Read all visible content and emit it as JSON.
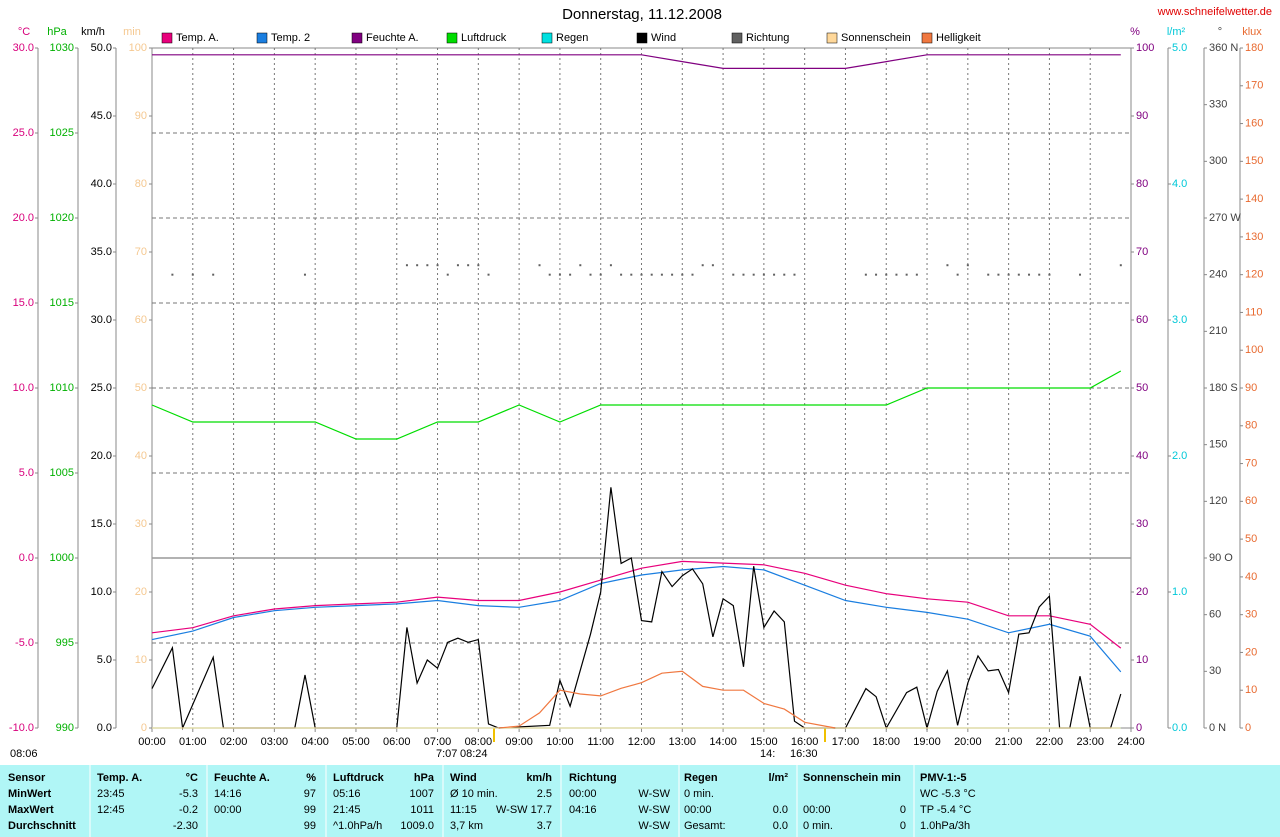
{
  "title": "Donnerstag, 11.12.2008",
  "url": "www.schneifelwetter.de",
  "time_marks": [
    "08:06",
    "7:07",
    "08:24",
    "14:",
    "16:30"
  ],
  "chart_data": {
    "type": "line",
    "xlim": [
      0,
      24
    ],
    "xticks": [
      {
        "value": 0,
        "label": "00:00"
      },
      {
        "value": 1,
        "label": "01:00"
      },
      {
        "value": 2,
        "label": "02:00"
      },
      {
        "value": 3,
        "label": "03:00"
      },
      {
        "value": 4,
        "label": "04:00"
      },
      {
        "value": 5,
        "label": "05:00"
      },
      {
        "value": 6,
        "label": "06:00"
      },
      {
        "value": 7,
        "label": "07:00"
      },
      {
        "value": 8,
        "label": "08:00"
      },
      {
        "value": 9,
        "label": "09:00"
      },
      {
        "value": 10,
        "label": "10:00"
      },
      {
        "value": 11,
        "label": "11:00"
      },
      {
        "value": 12,
        "label": "12:00"
      },
      {
        "value": 13,
        "label": "13:00"
      },
      {
        "value": 14,
        "label": "14:00"
      },
      {
        "value": 15,
        "label": "15:00"
      },
      {
        "value": 16,
        "label": "16:00"
      },
      {
        "value": 17,
        "label": "17:00"
      },
      {
        "value": 18,
        "label": "18:00"
      },
      {
        "value": 19,
        "label": "19:00"
      },
      {
        "value": 20,
        "label": "20:00"
      },
      {
        "value": 21,
        "label": "21:00"
      },
      {
        "value": 22,
        "label": "22:00"
      },
      {
        "value": 23,
        "label": "23:00"
      },
      {
        "value": 24,
        "label": "24:00"
      }
    ],
    "grid": true,
    "axes": [
      {
        "unit": "°C",
        "color": "#d8007c",
        "lim": [
          -10,
          30
        ],
        "ticks": [
          {
            "value": -10,
            "label": "-10.0"
          },
          {
            "value": -5,
            "label": "-5.0"
          },
          {
            "value": 0,
            "label": "0.0"
          },
          {
            "value": 5,
            "label": "5.0"
          },
          {
            "value": 10,
            "label": "10.0"
          },
          {
            "value": 15,
            "label": "15.0"
          },
          {
            "value": 20,
            "label": "20.0"
          },
          {
            "value": 25,
            "label": "25.0"
          },
          {
            "value": 30,
            "label": "30.0"
          }
        ]
      },
      {
        "unit": "hPa",
        "color": "#00b000",
        "lim": [
          990,
          1030
        ],
        "ticks": [
          990,
          995,
          1000,
          1005,
          1010,
          1015,
          1020,
          1025,
          1030
        ]
      },
      {
        "unit": "km/h",
        "color": "#000000",
        "lim": [
          0,
          50
        ],
        "ticks": [
          {
            "value": 0,
            "label": "0.0"
          },
          {
            "value": 5,
            "label": "5.0"
          },
          {
            "value": 10,
            "label": "10.0"
          },
          {
            "value": 15,
            "label": "15.0"
          },
          {
            "value": 20,
            "label": "20.0"
          },
          {
            "value": 25,
            "label": "25.0"
          },
          {
            "value": 30,
            "label": "30.0"
          },
          {
            "value": 35,
            "label": "35.0"
          },
          {
            "value": 40,
            "label": "40.0"
          },
          {
            "value": 45,
            "label": "45.0"
          },
          {
            "value": 50,
            "label": "50.0"
          }
        ]
      },
      {
        "unit": "min",
        "color": "#f5c890",
        "lim": [
          0,
          100
        ],
        "ticks": [
          0,
          10,
          20,
          30,
          40,
          50,
          60,
          70,
          80,
          90,
          100
        ]
      },
      {
        "unit": "%",
        "color": "#800080",
        "lim": [
          0,
          100
        ],
        "ticks": [
          0,
          10,
          20,
          30,
          40,
          50,
          60,
          70,
          80,
          90,
          100
        ]
      },
      {
        "unit": "l/m²",
        "color": "#00c8d8",
        "lim": [
          0,
          5
        ],
        "ticks": [
          {
            "value": 0,
            "label": "0.0"
          },
          {
            "value": 1,
            "label": "1.0"
          },
          {
            "value": 2,
            "label": "2.0"
          },
          {
            "value": 3,
            "label": "3.0"
          },
          {
            "value": 4,
            "label": "4.0"
          },
          {
            "value": 5,
            "label": "5.0"
          }
        ]
      },
      {
        "unit": "°",
        "color": "#404040",
        "lim": [
          0,
          360
        ],
        "ticks": [
          {
            "value": 0,
            "label": "0 N"
          },
          30,
          60,
          {
            "value": 90,
            "label": "90 O"
          },
          120,
          150,
          {
            "value": 180,
            "label": "180 S"
          },
          210,
          240,
          {
            "value": 270,
            "label": "270 W"
          },
          300,
          330,
          {
            "value": 360,
            "label": "360 N"
          }
        ]
      },
      {
        "unit": "klux",
        "color": "#e86a30",
        "lim": [
          0,
          180
        ],
        "ticks": [
          0,
          10,
          20,
          30,
          40,
          50,
          60,
          70,
          80,
          90,
          100,
          110,
          120,
          130,
          140,
          150,
          160,
          170,
          180
        ]
      }
    ],
    "series": [
      {
        "name": "Temp. A.",
        "color": "#e8007c",
        "axis": "°C",
        "kind": "line",
        "x": [
          0,
          1,
          2,
          3,
          4,
          5,
          6,
          7,
          8,
          9,
          10,
          11,
          12,
          13,
          14,
          15,
          16,
          17,
          18,
          19,
          20,
          21,
          22,
          23,
          23.75
        ],
        "values": [
          -4.4,
          -4.1,
          -3.4,
          -3.0,
          -2.8,
          -2.7,
          -2.6,
          -2.3,
          -2.5,
          -2.5,
          -2.0,
          -1.3,
          -0.6,
          -0.2,
          -0.3,
          -0.4,
          -0.9,
          -1.6,
          -2.1,
          -2.4,
          -2.6,
          -3.4,
          -3.4,
          -3.9,
          -5.3
        ]
      },
      {
        "name": "Temp. 2",
        "color": "#1a7ee0",
        "axis": "°C",
        "kind": "line",
        "x": [
          0,
          1,
          2,
          3,
          4,
          5,
          6,
          7,
          8,
          9,
          10,
          11,
          12,
          13,
          14,
          15,
          16,
          17,
          18,
          19,
          20,
          21,
          22,
          23,
          23.75
        ],
        "values": [
          -4.8,
          -4.3,
          -3.5,
          -3.1,
          -2.9,
          -2.8,
          -2.7,
          -2.5,
          -2.8,
          -2.9,
          -2.5,
          -1.5,
          -1.0,
          -0.7,
          -0.5,
          -0.7,
          -1.6,
          -2.5,
          -2.9,
          -3.2,
          -3.6,
          -4.4,
          -3.9,
          -4.6,
          -6.7
        ]
      },
      {
        "name": "Feuchte A.",
        "color": "#800080",
        "axis": "%",
        "kind": "line",
        "x": [
          0,
          1,
          2,
          3,
          4,
          5,
          6,
          7,
          8,
          9,
          10,
          11,
          12,
          13,
          14,
          15,
          16,
          17,
          18,
          19,
          20,
          21,
          22,
          23,
          23.75
        ],
        "values": [
          99,
          99,
          99,
          99,
          99,
          99,
          99,
          99,
          99,
          99,
          99,
          99,
          99,
          98,
          97,
          97,
          97,
          97,
          98,
          99,
          99,
          99,
          99,
          99,
          99
        ]
      },
      {
        "name": "Luftdruck",
        "color": "#00dd00",
        "axis": "hPa",
        "kind": "line",
        "x": [
          0,
          1,
          2,
          3,
          4,
          5,
          6,
          7,
          8,
          9,
          10,
          11,
          12,
          13,
          14,
          15,
          16,
          17,
          18,
          19,
          20,
          21,
          22,
          23,
          23.75
        ],
        "values": [
          1009,
          1008,
          1008,
          1008,
          1008,
          1007,
          1007,
          1008,
          1008,
          1009,
          1008,
          1009,
          1009,
          1009,
          1009,
          1009,
          1009,
          1009,
          1009,
          1010,
          1010,
          1010,
          1010,
          1010,
          1011
        ]
      },
      {
        "name": "Regen",
        "color": "#00e0e0",
        "axis": "l/m²",
        "kind": "line",
        "x": [
          0,
          23.75
        ],
        "values": [
          0,
          0
        ]
      },
      {
        "name": "Wind",
        "color": "#000000",
        "axis": "km/h",
        "kind": "line",
        "x": [
          0,
          0.5,
          0.75,
          1.5,
          1.75,
          3.5,
          3.75,
          4,
          6,
          6.25,
          6.5,
          6.75,
          7,
          7.25,
          7.5,
          7.75,
          8,
          8.25,
          8.5,
          9.75,
          10,
          10.25,
          10.75,
          11,
          11.25,
          11.5,
          11.75,
          12,
          12.25,
          12.5,
          12.75,
          13,
          13.25,
          13.5,
          13.75,
          14,
          14.25,
          14.5,
          14.75,
          15,
          15.25,
          15.5,
          15.75,
          16,
          17,
          17.5,
          17.75,
          18,
          18.5,
          18.75,
          19,
          19.25,
          19.5,
          19.75,
          20,
          20.25,
          20.5,
          20.75,
          21,
          21.25,
          21.5,
          21.75,
          22,
          22.25,
          22.5,
          22.75,
          23,
          23.5,
          23.75
        ],
        "values": [
          2.9,
          5.9,
          0,
          5.2,
          0,
          0,
          3.9,
          0,
          0,
          7.4,
          3.3,
          5.0,
          4.4,
          6.3,
          6.6,
          6.3,
          6.5,
          0.3,
          0,
          0.2,
          3.5,
          1.6,
          6.9,
          10.0,
          17.7,
          12.1,
          12.5,
          7.9,
          7.8,
          11.5,
          10.4,
          11.2,
          11.7,
          10.6,
          6.7,
          9.5,
          9.0,
          4.5,
          11.9,
          7.4,
          8.6,
          7.8,
          0.5,
          0,
          0,
          2.9,
          2.3,
          0,
          2.6,
          3.0,
          0,
          2.7,
          4.2,
          0.2,
          3.3,
          5.3,
          4.2,
          4.3,
          2.6,
          6.9,
          7.0,
          8.9,
          9.7,
          0,
          0,
          3.8,
          0,
          0,
          2.5
        ]
      },
      {
        "name": "Richtung",
        "color": "#606060",
        "axis": "°",
        "kind": "points",
        "x": [
          0.5,
          1,
          1.5,
          3.75,
          6.25,
          6.5,
          6.75,
          7,
          7.25,
          7.5,
          7.75,
          8,
          8.25,
          9.5,
          9.75,
          10,
          10.25,
          10.5,
          10.75,
          11,
          11.25,
          11.5,
          11.75,
          12,
          12.25,
          12.5,
          12.75,
          13,
          13.25,
          13.5,
          13.75,
          14.25,
          14.5,
          14.75,
          15,
          15.25,
          15.5,
          15.75,
          17.5,
          17.75,
          18,
          18.25,
          18.5,
          18.75,
          19.5,
          19.75,
          20,
          20.5,
          20.75,
          21,
          21.25,
          21.5,
          21.75,
          22,
          22.75,
          23.75
        ],
        "values": [
          240,
          240,
          240,
          240,
          245,
          245,
          245,
          245,
          240,
          245,
          245,
          245,
          240,
          245,
          240,
          240,
          240,
          245,
          240,
          240,
          245,
          240,
          240,
          240,
          240,
          240,
          240,
          240,
          240,
          245,
          245,
          240,
          240,
          240,
          240,
          240,
          240,
          240,
          240,
          240,
          240,
          240,
          240,
          240,
          245,
          240,
          245,
          240,
          240,
          240,
          240,
          240,
          240,
          240,
          240,
          245
        ]
      },
      {
        "name": "Sonnenschein",
        "color": "#ffd89a",
        "axis": "min",
        "kind": "line",
        "x": [
          0,
          23.75
        ],
        "values": [
          0,
          0
        ]
      },
      {
        "name": "Helligkeit",
        "color": "#f07840",
        "axis": "klux",
        "kind": "line",
        "x": [
          8.5,
          9,
          9.5,
          10,
          10.5,
          11,
          11.5,
          12,
          12.5,
          13,
          13.5,
          14,
          14.5,
          15,
          15.5,
          16,
          16.5,
          16.75
        ],
        "values": [
          0,
          0.5,
          4,
          10,
          9,
          8.5,
          10.5,
          12,
          14.5,
          15,
          11,
          10,
          10,
          6.5,
          5,
          1.5,
          0.5,
          0
        ]
      }
    ]
  },
  "table": {
    "header": [
      "Sensor",
      "Temp. A.",
      "°C",
      "Feuchte A.",
      "%",
      "Luftdruck",
      "hPa",
      "Wind",
      "km/h",
      "Richtung",
      null,
      "Regen",
      "l/m²",
      "Sonnenschein min",
      null,
      "PMV-1:-5"
    ],
    "rows": [
      [
        "MinWert",
        "23:45",
        "-5.3",
        "14:16",
        "97",
        "05:16",
        "1007",
        "Ø 10 min.",
        "2.5",
        "00:00",
        "W-SW",
        "0 min.",
        null,
        null,
        null,
        "WC -5.3 °C"
      ],
      [
        "MaxWert",
        "12:45",
        "-0.2",
        "00:00",
        "99",
        "21:45",
        "1011",
        "11:15",
        "W-SW 17.7",
        "04:16",
        "W-SW",
        "00:00",
        "0.0",
        "00:00",
        "0",
        "TP -5.4 °C"
      ],
      [
        "Durchschnitt",
        null,
        "-2.30",
        null,
        "99",
        "^1.0hPa/h",
        "1009.0",
        "3,7 km",
        "3.7",
        null,
        "W-SW",
        "Gesamt:",
        "0.0",
        "0 min.",
        "0",
        "1.0hPa/3h"
      ]
    ]
  }
}
